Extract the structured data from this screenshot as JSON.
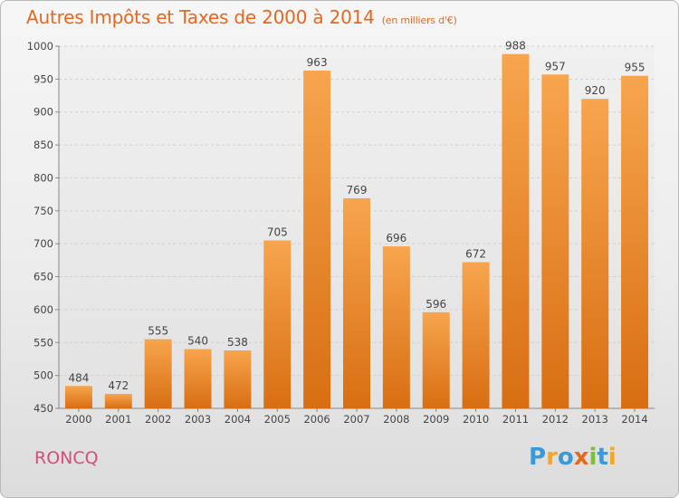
{
  "header": {
    "title": "Autres Impôts et Taxes de 2000 à 2014",
    "subtitle": "(en milliers d'€)"
  },
  "footer": {
    "commune": "RONCQ",
    "logo_text": "Proxiti",
    "logo_letters": [
      {
        "char": "P",
        "color": "#3a9ad9"
      },
      {
        "char": "r",
        "color": "#f5a623"
      },
      {
        "char": "o",
        "color": "#3a9ad9"
      },
      {
        "char": "x",
        "color": "#e8671c"
      },
      {
        "char": "i",
        "color": "#7cbf3a"
      },
      {
        "char": "t",
        "color": "#3a9ad9"
      },
      {
        "char": "i",
        "color": "#f5a623"
      }
    ]
  },
  "chart_data": {
    "type": "bar",
    "categories": [
      "2000",
      "2001",
      "2002",
      "2003",
      "2004",
      "2005",
      "2006",
      "2007",
      "2008",
      "2009",
      "2010",
      "2011",
      "2012",
      "2013",
      "2014"
    ],
    "values": [
      484,
      472,
      555,
      540,
      538,
      705,
      963,
      769,
      696,
      596,
      672,
      988,
      957,
      920,
      955
    ],
    "title": "Autres Impôts et Taxes de 2000 à 2014",
    "xlabel": "",
    "ylabel": "",
    "ylim": [
      450,
      1000
    ],
    "yticks": [
      450,
      500,
      550,
      600,
      650,
      700,
      750,
      800,
      850,
      900,
      950,
      1000
    ],
    "grid": true,
    "bar_color": "#f28c28",
    "label_color": "#444444"
  }
}
